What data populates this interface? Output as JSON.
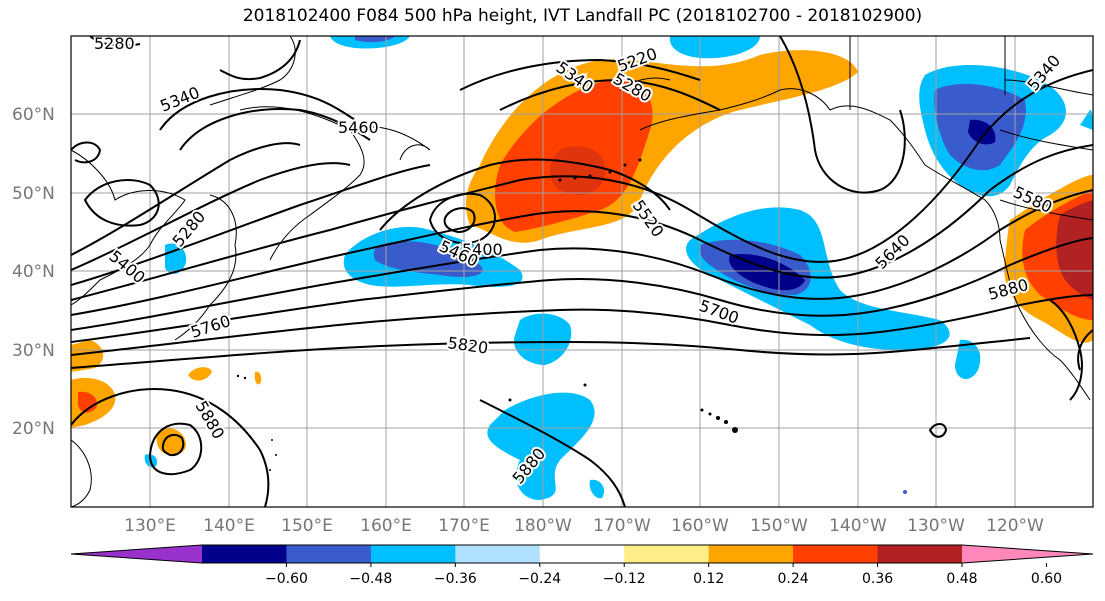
{
  "title": "2018102400 F084 500 hPa height, IVT Landfall PC (2018102700 - 2018102900)",
  "lat_labels": [
    "60°N",
    "50°N",
    "40°N",
    "30°N",
    "20°N"
  ],
  "lon_labels": [
    "130°E",
    "140°E",
    "150°E",
    "160°E",
    "170°E",
    "180°W",
    "170°W",
    "160°W",
    "150°W",
    "140°W",
    "130°W",
    "120°W"
  ],
  "contour_labels": [
    "5280",
    "5340",
    "5460",
    "5400",
    "5280",
    "5220",
    "5340",
    "5280",
    "5340",
    "5400",
    "5460",
    "5520",
    "5400",
    "5760",
    "5820",
    "5700",
    "5640",
    "5580",
    "5880",
    "5880",
    "5880"
  ],
  "colorbar": {
    "ticks": [
      "−0.60",
      "−0.48",
      "−0.36",
      "−0.24",
      "−0.12",
      "0.12",
      "0.24",
      "0.36",
      "0.48",
      "0.60"
    ],
    "colors": [
      "#9932cc",
      "#00008b",
      "#3a5bcc",
      "#00bfff",
      "#b0e0ff",
      "#ffffff",
      "#ffee88",
      "#ffa500",
      "#ff4000",
      "#b22222",
      "#ff88bb"
    ]
  },
  "colors": {
    "lat_lon_label": "#777777",
    "grid": "#a0a0a0"
  }
}
